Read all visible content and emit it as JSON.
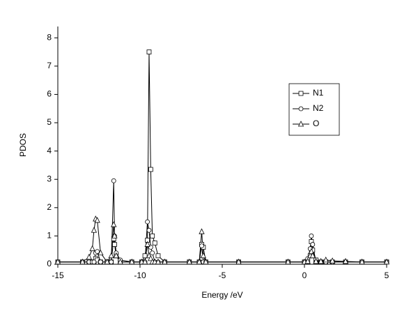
{
  "chart_data": {
    "type": "line",
    "x_label": "Energy /eV",
    "y_label": "PDOS",
    "x": [
      -15,
      -13.5,
      -13.1,
      -12.9,
      -12.8,
      -12.7,
      -12.6,
      -12.4,
      -12.0,
      -11.75,
      -11.6,
      -11.55,
      -11.45,
      -11.2,
      -10.5,
      -9.9,
      -9.7,
      -9.55,
      -9.45,
      -9.35,
      -9.25,
      -9.1,
      -8.9,
      -8.5,
      -7,
      -6.4,
      -6.25,
      -6.15,
      -6.0,
      -4,
      -1,
      0,
      0.2,
      0.35,
      0.42,
      0.5,
      0.7,
      1.0,
      1.3,
      1.7,
      2.5,
      3.5,
      5
    ],
    "series": [
      {
        "name": "N1",
        "marker": "square",
        "color": "#000000",
        "values": [
          0.08,
          0.08,
          0.08,
          0.08,
          0.08,
          0.2,
          0.15,
          0.08,
          0.08,
          0.08,
          0.9,
          0.7,
          0.3,
          0.08,
          0.08,
          0.08,
          0.3,
          0.85,
          7.5,
          3.35,
          1.0,
          0.75,
          0.3,
          0.08,
          0.08,
          0.08,
          0.7,
          0.6,
          0.08,
          0.08,
          0.08,
          0.08,
          0.1,
          0.3,
          0.8,
          0.5,
          0.15,
          0.08,
          0.08,
          0.08,
          0.08,
          0.08,
          0.08
        ]
      },
      {
        "name": "N2",
        "marker": "circle",
        "color": "#000000",
        "values": [
          0.08,
          0.08,
          0.08,
          0.08,
          0.08,
          0.4,
          0.45,
          0.08,
          0.08,
          0.08,
          2.95,
          1.0,
          0.4,
          0.15,
          0.08,
          0.08,
          0.08,
          1.5,
          1.2,
          0.6,
          0.4,
          0.08,
          0.08,
          0.08,
          0.08,
          0.08,
          0.65,
          0.08,
          0.08,
          0.08,
          0.08,
          0.08,
          0.2,
          0.55,
          1.0,
          0.7,
          0.08,
          0.08,
          0.08,
          0.08,
          0.08,
          0.08,
          0.08
        ]
      },
      {
        "name": "O",
        "marker": "triangle",
        "color": "#000000",
        "values": [
          0.08,
          0.08,
          0.25,
          0.55,
          1.2,
          1.6,
          1.55,
          0.4,
          0.08,
          0.3,
          1.4,
          1.0,
          0.3,
          0.08,
          0.08,
          0.08,
          0.08,
          0.7,
          0.3,
          0.2,
          0.08,
          0.08,
          0.08,
          0.08,
          0.08,
          0.08,
          1.15,
          0.3,
          0.08,
          0.08,
          0.08,
          0.08,
          0.1,
          0.3,
          0.45,
          0.3,
          0.1,
          0.1,
          0.15,
          0.12,
          0.1,
          0.08,
          0.08
        ]
      }
    ],
    "xlim": [
      -15,
      5
    ],
    "xticks": [
      -15,
      -10,
      -5,
      0,
      5
    ],
    "ylim": [
      0,
      8.4
    ],
    "yticks": [
      0,
      1,
      2,
      3,
      4,
      5,
      6,
      7,
      8
    ],
    "grid": false,
    "legend": "upper right"
  }
}
